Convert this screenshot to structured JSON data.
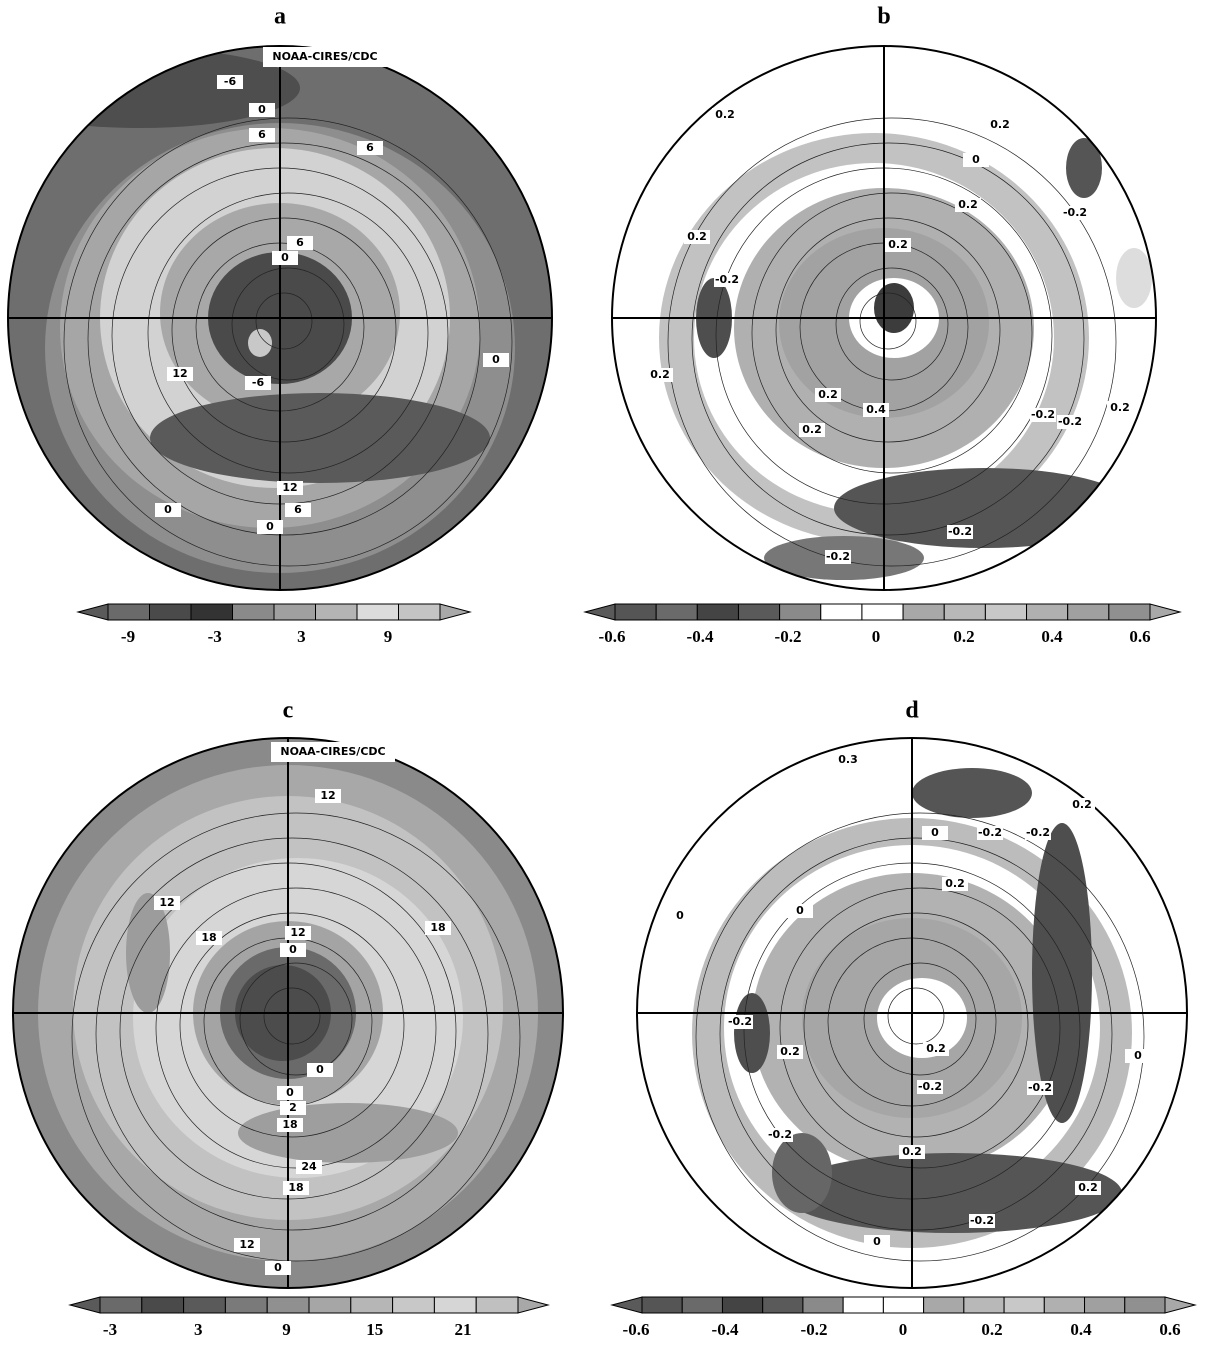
{
  "panels": [
    {
      "label": "a",
      "watermark": "NOAA-CIRES/CDC",
      "colorbar_ticks": [
        "-9",
        "-3",
        "3",
        "9"
      ],
      "contour_labels": [
        "-6",
        "0",
        "6",
        "6",
        "6",
        "0",
        "-6",
        "12",
        "0",
        "12",
        "6",
        "0",
        "0"
      ]
    },
    {
      "label": "b",
      "colorbar_ticks": [
        "-0.6",
        "-0.4",
        "-0.2",
        "0",
        "0.2",
        "0.4",
        "0.6"
      ],
      "contour_labels": [
        "0.2",
        "0.2",
        "0",
        "0.2",
        "-0.2",
        "0.2",
        "-0.2",
        "0.2",
        "0.2",
        "0.2",
        "0.4",
        "0.2",
        "-0.2",
        "-0.2",
        "0.2",
        "-0.2",
        "-0.2"
      ]
    },
    {
      "label": "c",
      "watermark": "NOAA-CIRES/CDC",
      "colorbar_ticks": [
        "-3",
        "3",
        "9",
        "15",
        "21"
      ],
      "contour_labels": [
        "12",
        "12",
        "18",
        "18",
        "12",
        "0",
        "0",
        "0",
        "2",
        "18",
        "24",
        "18",
        "12",
        "0"
      ]
    },
    {
      "label": "d",
      "colorbar_ticks": [
        "-0.6",
        "-0.4",
        "-0.2",
        "0",
        "0.2",
        "0.4",
        "0.6"
      ],
      "contour_labels": [
        "0.3",
        "0.2",
        "0",
        "-0.2",
        "-0.2",
        "0.2",
        "0",
        "0",
        "-0.2",
        "0.2",
        "0.2",
        "-0.2",
        "-0.2",
        "0",
        "-0.2",
        "0.2",
        "0.2",
        "-0.2",
        "0"
      ]
    }
  ]
}
